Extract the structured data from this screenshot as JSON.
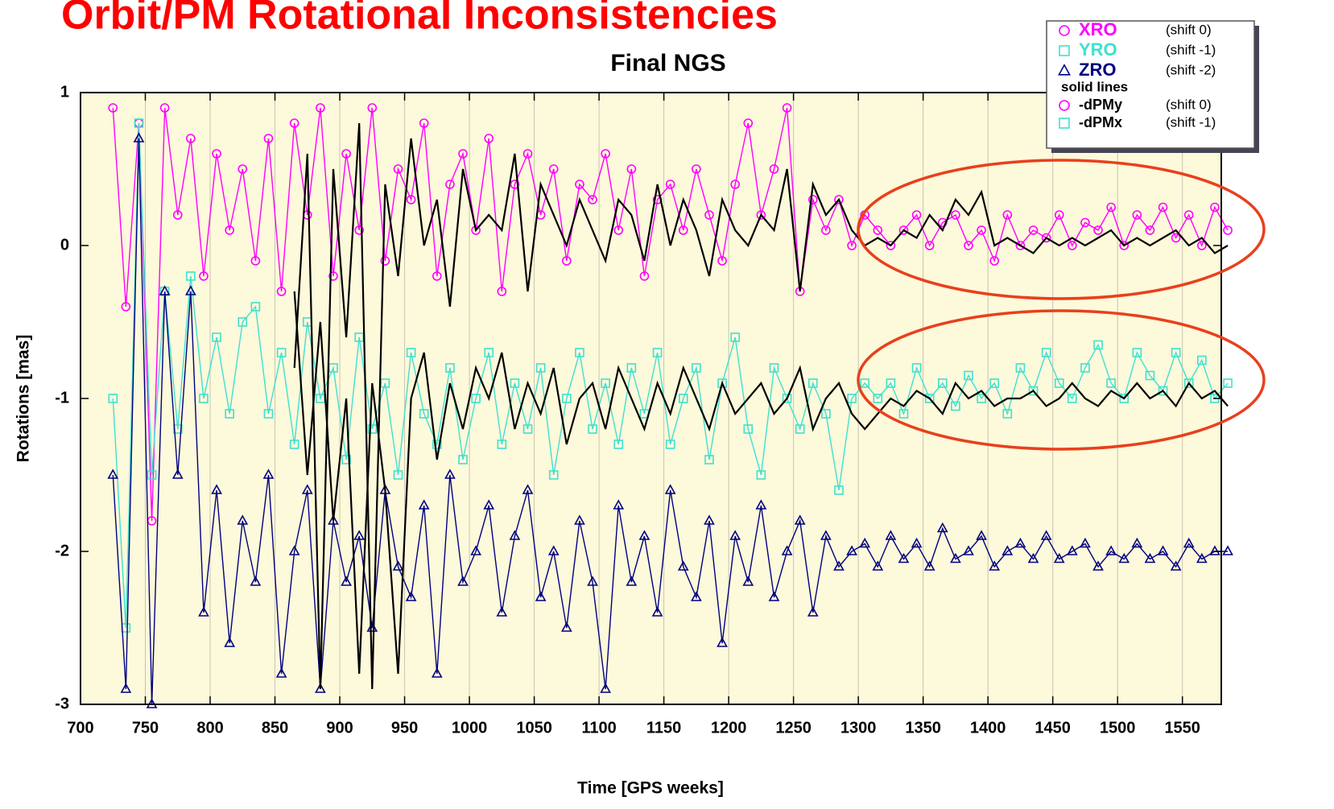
{
  "page_title": "Orbit/PM Rotational Inconsistencies",
  "chart_data": {
    "type": "line",
    "title": "Final NGS",
    "x_label": "Time [GPS weeks]",
    "y_label": "Rotations [mas]",
    "xlim": [
      700,
      1580
    ],
    "xticks": [
      700,
      750,
      800,
      850,
      900,
      950,
      1000,
      1050,
      1100,
      1150,
      1200,
      1250,
      1300,
      1350,
      1400,
      1450,
      1500,
      1550
    ],
    "ylim": [
      -3,
      1
    ],
    "yticks": [
      -3,
      -2,
      -1,
      0,
      1
    ],
    "grid": true,
    "legend_group_label": "solid lines",
    "x": [
      725,
      735,
      745,
      755,
      765,
      775,
      785,
      795,
      805,
      815,
      825,
      835,
      845,
      855,
      865,
      875,
      885,
      895,
      905,
      915,
      925,
      935,
      945,
      955,
      965,
      975,
      985,
      995,
      1005,
      1015,
      1025,
      1035,
      1045,
      1055,
      1065,
      1075,
      1085,
      1095,
      1105,
      1115,
      1125,
      1135,
      1145,
      1155,
      1165,
      1175,
      1185,
      1195,
      1205,
      1215,
      1225,
      1235,
      1245,
      1255,
      1265,
      1275,
      1285,
      1295,
      1305,
      1315,
      1325,
      1335,
      1345,
      1355,
      1365,
      1375,
      1385,
      1395,
      1405,
      1415,
      1425,
      1435,
      1445,
      1455,
      1465,
      1475,
      1485,
      1495,
      1505,
      1515,
      1525,
      1535,
      1545,
      1555,
      1565,
      1575,
      1585
    ],
    "series": [
      {
        "name": "XRO",
        "shift_label": "(shift 0)",
        "color": "#ff00ff",
        "marker": "circle",
        "values": [
          0.9,
          -0.4,
          0.8,
          -1.8,
          0.9,
          0.2,
          0.7,
          -0.2,
          0.6,
          0.1,
          0.5,
          -0.1,
          0.7,
          -0.3,
          0.8,
          0.2,
          0.9,
          -0.2,
          0.6,
          0.1,
          0.9,
          -0.1,
          0.5,
          0.3,
          0.8,
          -0.2,
          0.4,
          0.6,
          0.1,
          0.7,
          -0.3,
          0.4,
          0.6,
          0.2,
          0.5,
          -0.1,
          0.4,
          0.3,
          0.6,
          0.1,
          0.5,
          -0.2,
          0.3,
          0.4,
          0.1,
          0.5,
          0.2,
          -0.1,
          0.4,
          0.8,
          0.2,
          0.5,
          0.9,
          -0.3,
          0.3,
          0.1,
          0.3,
          0.0,
          0.2,
          0.1,
          0.0,
          0.1,
          0.2,
          0.0,
          0.15,
          0.2,
          0.0,
          0.1,
          -0.1,
          0.2,
          0.0,
          0.1,
          0.05,
          0.2,
          0.0,
          0.15,
          0.1,
          0.25,
          0.0,
          0.2,
          0.1,
          0.25,
          0.05,
          0.2,
          0.0,
          0.25,
          0.1
        ]
      },
      {
        "name": "YRO",
        "shift_label": "(shift -1)",
        "color": "#40e0d0",
        "marker": "square",
        "values": [
          -1.0,
          -2.5,
          0.8,
          -1.5,
          -0.3,
          -1.2,
          -0.2,
          -1.0,
          -0.6,
          -1.1,
          -0.5,
          -0.4,
          -1.1,
          -0.7,
          -1.3,
          -0.5,
          -1.0,
          -0.8,
          -1.4,
          -0.6,
          -1.2,
          -0.9,
          -1.5,
          -0.7,
          -1.1,
          -1.3,
          -0.8,
          -1.4,
          -1.0,
          -0.7,
          -1.3,
          -0.9,
          -1.2,
          -0.8,
          -1.5,
          -1.0,
          -0.7,
          -1.2,
          -0.9,
          -1.3,
          -0.8,
          -1.1,
          -0.7,
          -1.3,
          -1.0,
          -0.8,
          -1.4,
          -0.9,
          -0.6,
          -1.2,
          -1.5,
          -0.8,
          -1.0,
          -1.2,
          -0.9,
          -1.1,
          -1.6,
          -1.0,
          -0.9,
          -1.0,
          -0.9,
          -1.1,
          -0.8,
          -1.0,
          -0.9,
          -1.05,
          -0.85,
          -1.0,
          -0.9,
          -1.1,
          -0.8,
          -0.95,
          -0.7,
          -0.9,
          -1.0,
          -0.8,
          -0.65,
          -0.9,
          -1.0,
          -0.7,
          -0.85,
          -0.95,
          -0.7,
          -0.9,
          -0.75,
          -1.0,
          -0.9
        ]
      },
      {
        "name": "ZRO",
        "shift_label": "(shift -2)",
        "color": "#000080",
        "marker": "triangle",
        "values": [
          -1.5,
          -2.9,
          0.7,
          -3.0,
          -0.3,
          -1.5,
          -0.3,
          -2.4,
          -1.6,
          -2.6,
          -1.8,
          -2.2,
          -1.5,
          -2.8,
          -2.0,
          -1.6,
          -2.9,
          -1.8,
          -2.2,
          -1.9,
          -2.5,
          -1.6,
          -2.1,
          -2.3,
          -1.7,
          -2.8,
          -1.5,
          -2.2,
          -2.0,
          -1.7,
          -2.4,
          -1.9,
          -1.6,
          -2.3,
          -2.0,
          -2.5,
          -1.8,
          -2.2,
          -2.9,
          -1.7,
          -2.2,
          -1.9,
          -2.4,
          -1.6,
          -2.1,
          -2.3,
          -1.8,
          -2.6,
          -1.9,
          -2.2,
          -1.7,
          -2.3,
          -2.0,
          -1.8,
          -2.4,
          -1.9,
          -2.1,
          -2.0,
          -1.95,
          -2.1,
          -1.9,
          -2.05,
          -1.95,
          -2.1,
          -1.85,
          -2.05,
          -2.0,
          -1.9,
          -2.1,
          -2.0,
          -1.95,
          -2.05,
          -1.9,
          -2.05,
          -2.0,
          -1.95,
          -2.1,
          -2.0,
          -2.05,
          -1.95,
          -2.05,
          -2.0,
          -2.1,
          -1.95,
          -2.05,
          -2.0,
          -2.0
        ]
      },
      {
        "name": "-dPMy",
        "shift_label": "(shift 0)",
        "color": "#000000",
        "legend_color": "#ff00ff",
        "marker": "none",
        "legend_marker": "circle",
        "values": [
          null,
          null,
          null,
          null,
          null,
          null,
          null,
          null,
          null,
          null,
          null,
          null,
          null,
          null,
          -0.8,
          0.6,
          -2.9,
          0.5,
          -0.6,
          0.8,
          -2.9,
          0.4,
          -0.2,
          0.7,
          0.0,
          0.3,
          -0.4,
          0.5,
          0.1,
          0.2,
          0.1,
          0.6,
          -0.3,
          0.4,
          0.2,
          0.0,
          0.3,
          0.1,
          -0.1,
          0.3,
          0.2,
          -0.1,
          0.4,
          0.0,
          0.3,
          0.1,
          -0.2,
          0.3,
          0.1,
          0.0,
          0.2,
          0.1,
          0.5,
          -0.3,
          0.4,
          0.2,
          0.3,
          0.1,
          0.0,
          0.05,
          0.0,
          0.1,
          0.05,
          0.2,
          0.1,
          0.3,
          0.2,
          0.35,
          0.0,
          0.05,
          0.0,
          -0.05,
          0.05,
          0.0,
          0.05,
          0.0,
          0.05,
          0.1,
          0.0,
          0.05,
          0.0,
          0.05,
          0.1,
          0.0,
          0.05,
          -0.05,
          0.0
        ]
      },
      {
        "name": "-dPMx",
        "shift_label": "(shift -1)",
        "color": "#000000",
        "legend_color": "#40e0d0",
        "marker": "none",
        "legend_marker": "square",
        "values": [
          null,
          null,
          null,
          null,
          null,
          null,
          null,
          null,
          null,
          null,
          null,
          null,
          null,
          null,
          -0.3,
          -1.5,
          -0.5,
          -1.8,
          -1.0,
          -2.8,
          -0.9,
          -1.6,
          -2.8,
          -1.0,
          -0.7,
          -1.4,
          -0.9,
          -1.2,
          -0.8,
          -1.0,
          -0.7,
          -1.2,
          -0.9,
          -1.1,
          -0.8,
          -1.3,
          -1.0,
          -0.9,
          -1.2,
          -0.8,
          -1.0,
          -1.2,
          -0.9,
          -1.1,
          -0.8,
          -1.0,
          -1.2,
          -0.9,
          -1.1,
          -1.0,
          -0.9,
          -1.1,
          -1.0,
          -0.8,
          -1.2,
          -1.0,
          -0.9,
          -1.1,
          -1.2,
          -1.1,
          -1.0,
          -1.05,
          -0.95,
          -1.0,
          -1.1,
          -0.9,
          -1.0,
          -0.95,
          -1.05,
          -1.0,
          -1.0,
          -0.95,
          -1.05,
          -1.0,
          -0.9,
          -1.0,
          -1.05,
          -0.95,
          -1.0,
          -0.9,
          -1.0,
          -0.95,
          -1.05,
          -0.9,
          -1.0,
          -0.95,
          -1.05
        ]
      }
    ]
  }
}
